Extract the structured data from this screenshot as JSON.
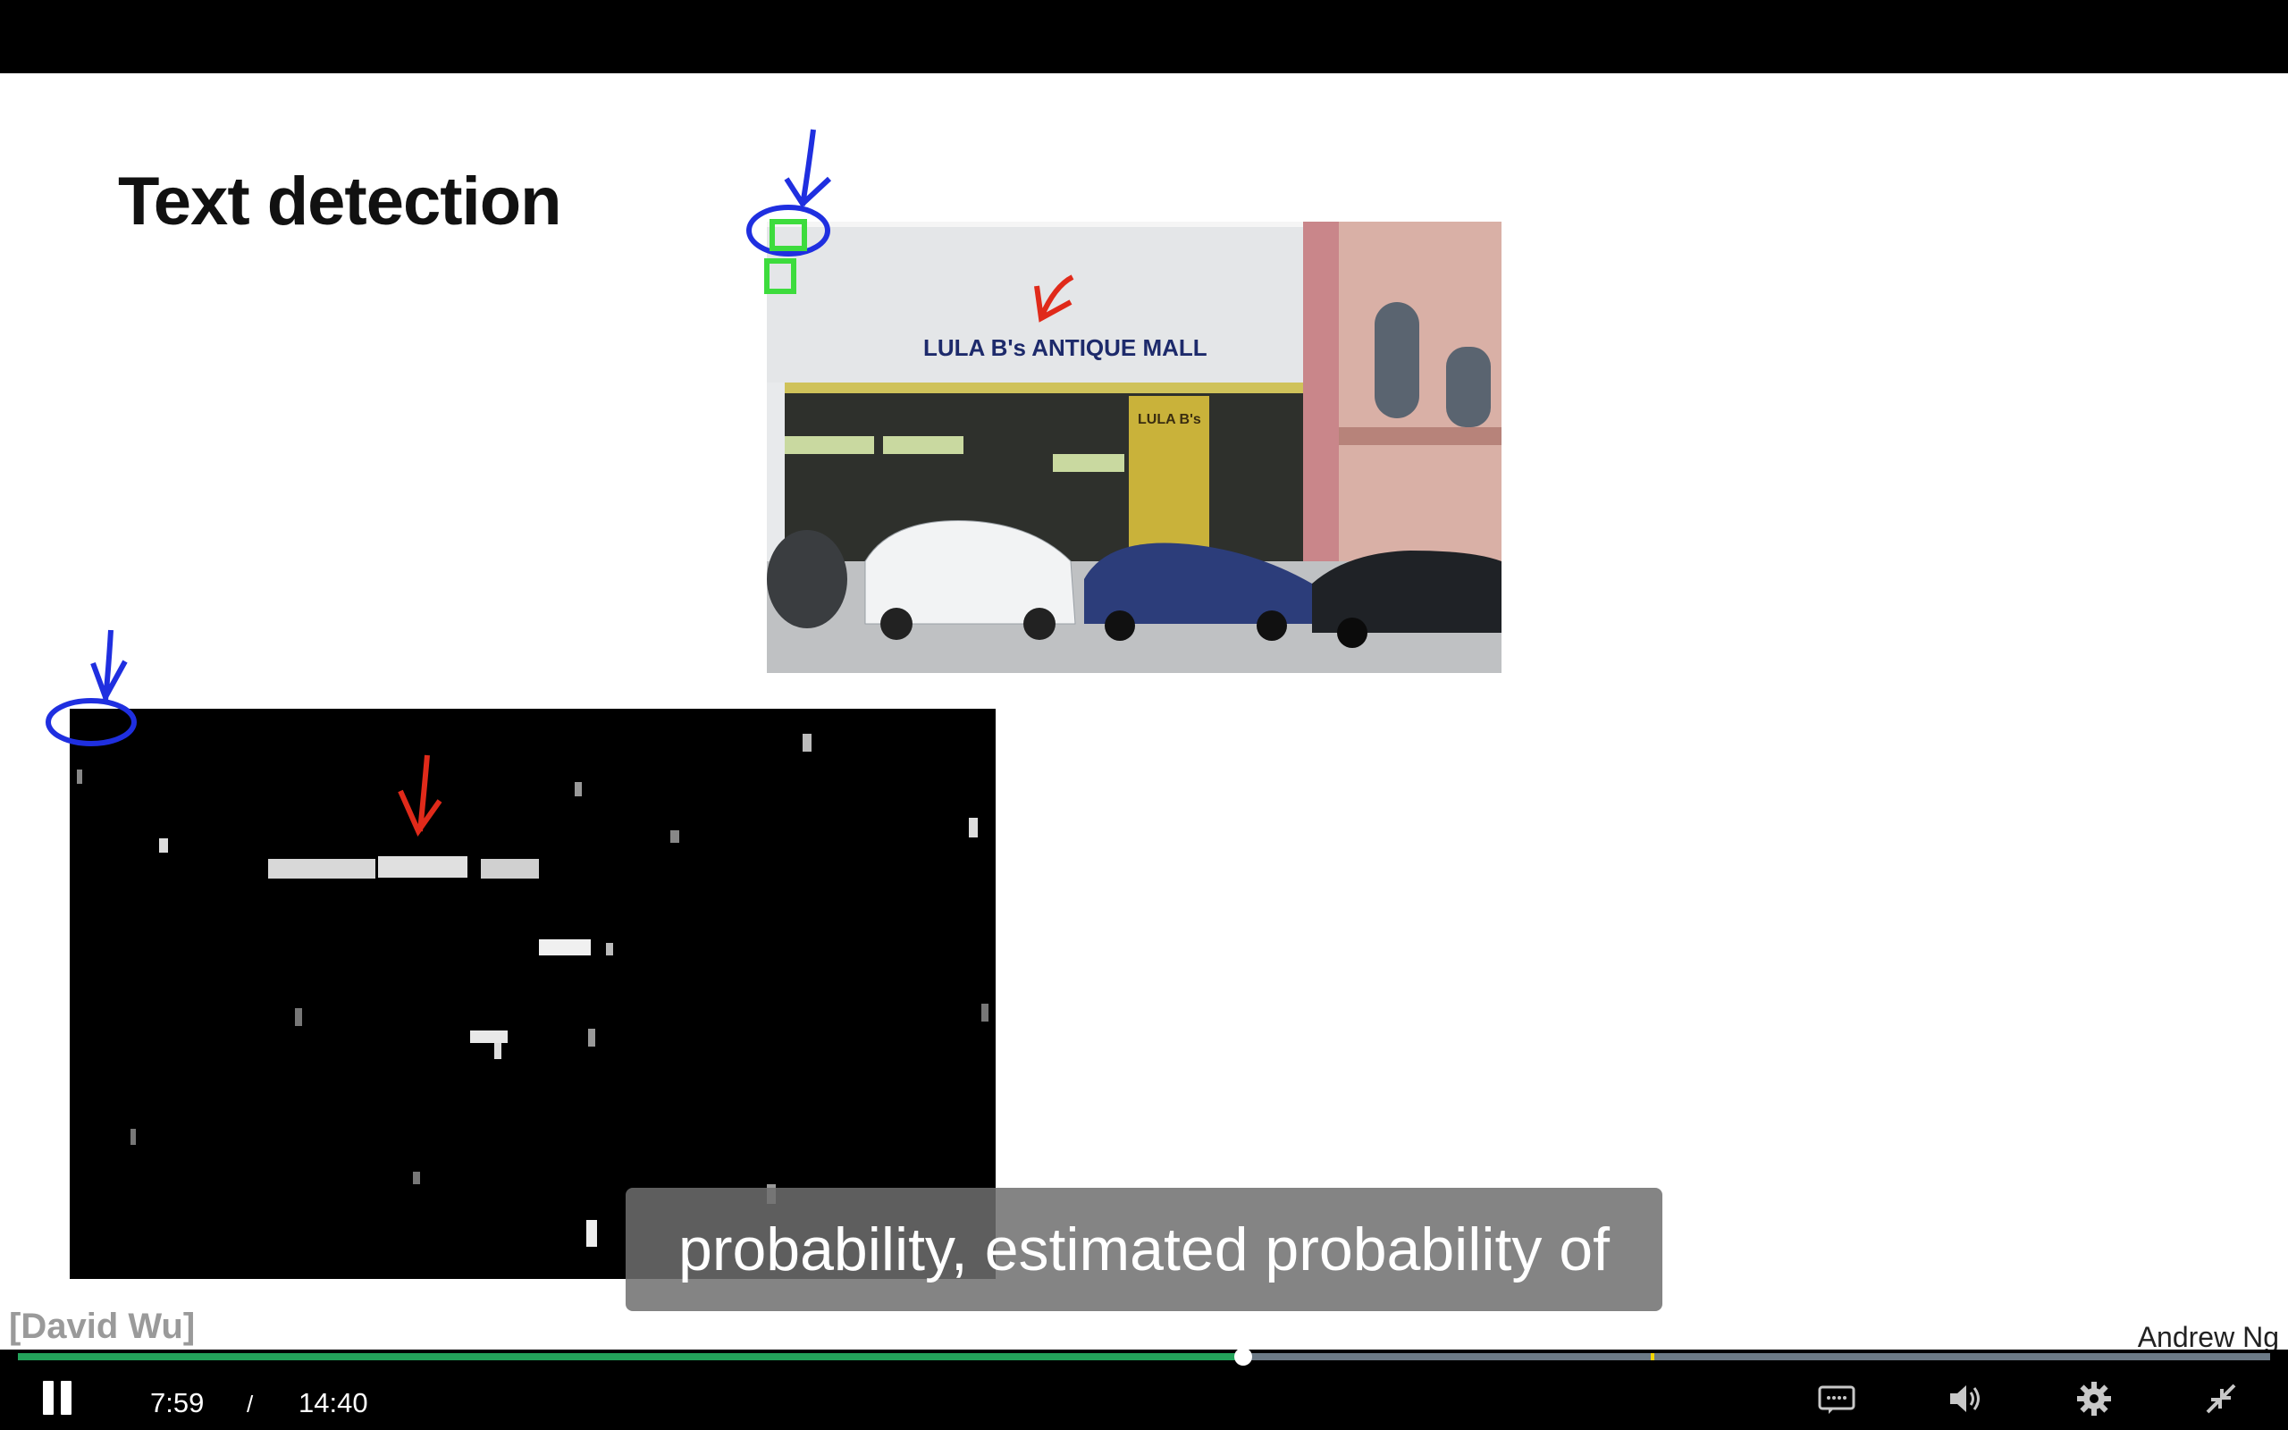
{
  "slide": {
    "title": "Text detection",
    "credit_left": "[David Wu]",
    "credit_right": "Andrew Ng"
  },
  "photo": {
    "sign_text": "LULA B's ANTIQUE MALL",
    "sign_text_secondary": "LULA B's"
  },
  "subtitle": {
    "text": "probability, estimated probability of"
  },
  "player": {
    "current_time": "7:59",
    "separator": "/",
    "duration": "14:40",
    "progress_fraction": 0.544,
    "marker_fraction": 0.725,
    "progress_color": "#23a35a",
    "icons": [
      "pause-icon",
      "captions-icon",
      "volume-icon",
      "settings-icon",
      "exit-fullscreen-icon"
    ]
  },
  "colors": {
    "annotation_blue": "#1f2fe0",
    "annotation_red": "#e02a1a",
    "detection_green": "#3ddc3d"
  }
}
